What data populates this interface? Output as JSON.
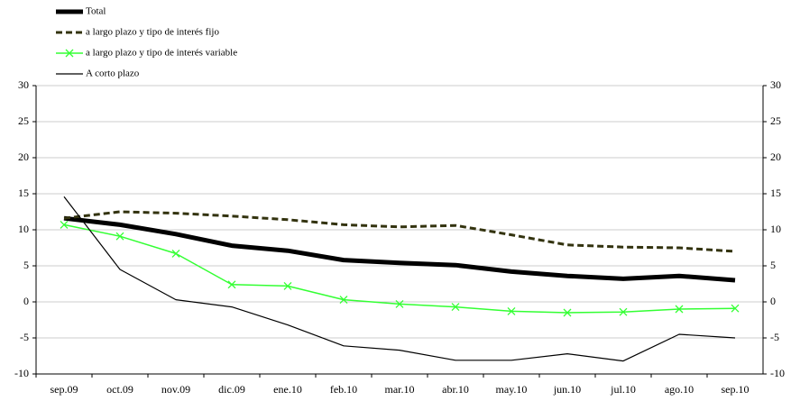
{
  "chart_data": {
    "type": "line",
    "categories": [
      "sep.09",
      "oct.09",
      "nov.09",
      "dic.09",
      "ene.10",
      "feb.10",
      "mar.10",
      "abr.10",
      "may.10",
      "jun.10",
      "jul.10",
      "ago.10",
      "sep.10"
    ],
    "series": [
      {
        "name": "Total",
        "color": "#000000",
        "width": 5,
        "values": [
          11.6,
          10.7,
          9.4,
          7.8,
          7.1,
          5.8,
          5.4,
          5.1,
          4.2,
          3.6,
          3.2,
          3.6,
          3.0
        ]
      },
      {
        "name": "a largo plazo y tipo de interés fijo",
        "color": "#33330f",
        "width": 3,
        "line_style": "dashed",
        "values": [
          11.6,
          12.5,
          12.3,
          11.9,
          11.4,
          10.7,
          10.4,
          10.6,
          9.3,
          7.9,
          7.6,
          7.5,
          7.0
        ]
      },
      {
        "name": "a largo plazo y tipo de interés variable",
        "color": "#33ff33",
        "width": 1.5,
        "marker": "x",
        "values": [
          10.7,
          9.1,
          6.7,
          2.4,
          2.2,
          0.3,
          -0.3,
          -0.7,
          -1.3,
          -1.5,
          -1.4,
          -1.0,
          -0.9
        ]
      },
      {
        "name": "A corto plazo",
        "color": "#000000",
        "width": 1.2,
        "values": [
          14.6,
          4.5,
          0.3,
          -0.7,
          -3.2,
          -6.1,
          -6.7,
          -8.1,
          -8.1,
          -7.2,
          -8.2,
          -4.5,
          -5.0
        ]
      }
    ],
    "ylim": [
      -10,
      30
    ],
    "yticks": [
      -10,
      -5,
      0,
      5,
      10,
      15,
      20,
      25,
      30
    ],
    "y2lim": [
      -10,
      30
    ],
    "y2ticks": [
      -10,
      -5,
      0,
      5,
      10,
      15,
      20,
      25,
      30
    ],
    "grid": true,
    "legend": "top-left"
  }
}
